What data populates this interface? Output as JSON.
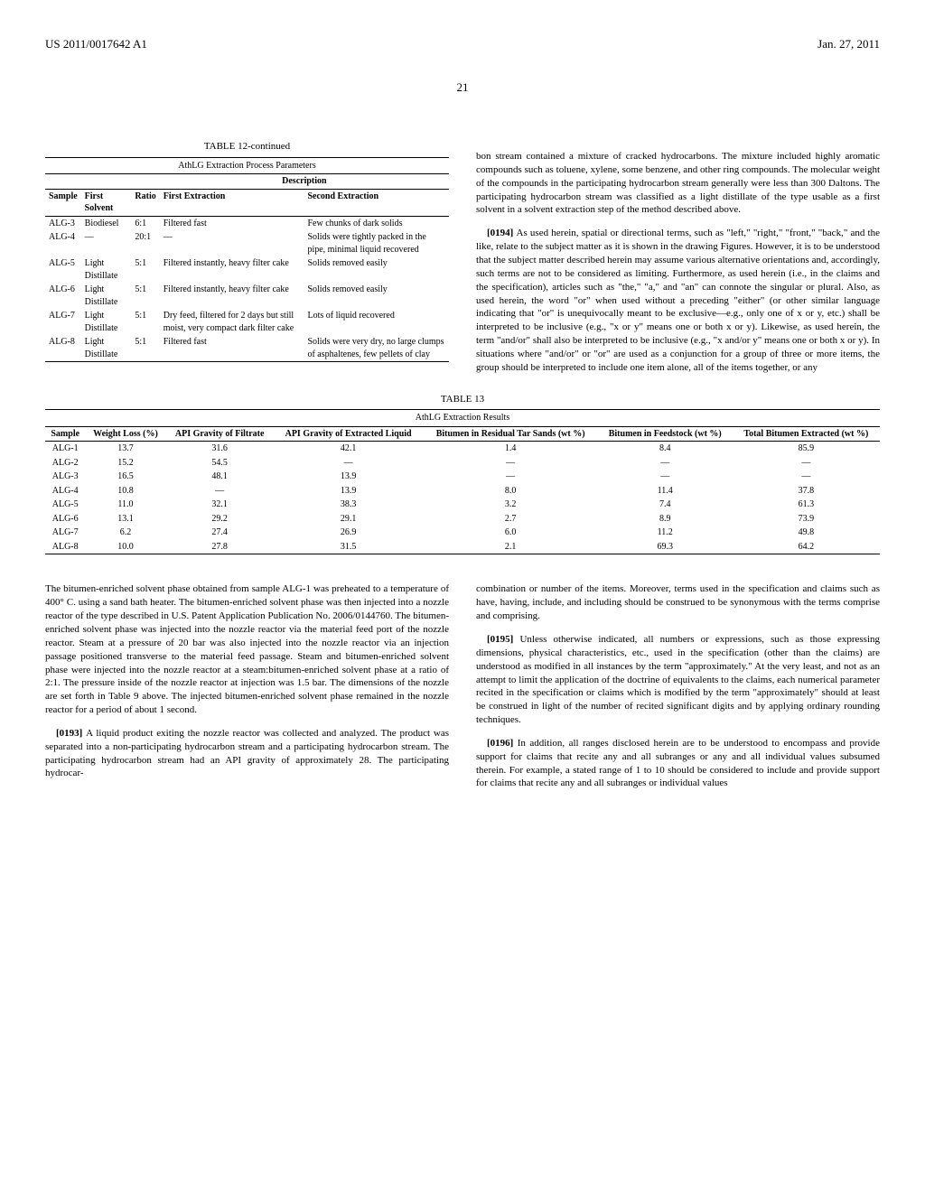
{
  "header": {
    "pubnum": "US 2011/0017642 A1",
    "pubdate": "Jan. 27, 2011",
    "pagenum": "21"
  },
  "table12": {
    "caption": "TABLE 12-continued",
    "subcaption": "AthLG Extraction Process Parameters",
    "desc_header": "Description",
    "columns": [
      "Sample",
      "First Solvent",
      "Ratio",
      "First Extraction",
      "Second Extraction"
    ],
    "rows": [
      {
        "sample": "ALG-3",
        "solvent": "Biodiesel",
        "ratio": "6:1",
        "first": "Filtered fast",
        "second": "Few chunks of dark solids"
      },
      {
        "sample": "ALG-4",
        "solvent": "—",
        "ratio": "20:1",
        "first": "—",
        "second": "Solids were tightly packed in the pipe, minimal liquid recovered"
      },
      {
        "sample": "ALG-5",
        "solvent": "Light Distillate",
        "ratio": "5:1",
        "first": "Filtered instantly, heavy filter cake",
        "second": "Solids removed easily"
      },
      {
        "sample": "ALG-6",
        "solvent": "Light Distillate",
        "ratio": "5:1",
        "first": "Filtered instantly, heavy filter cake",
        "second": "Solids removed easily"
      },
      {
        "sample": "ALG-7",
        "solvent": "Light Distillate",
        "ratio": "5:1",
        "first": "Dry feed, filtered for 2 days but still moist, very compact dark filter cake",
        "second": "Lots of liquid recovered"
      },
      {
        "sample": "ALG-8",
        "solvent": "Light Distillate",
        "ratio": "5:1",
        "first": "Filtered fast",
        "second": "Solids were very dry, no large clumps of asphaltenes, few pellets of clay"
      }
    ]
  },
  "table13": {
    "caption": "TABLE 13",
    "subcaption": "AthLG Extraction Results",
    "columns": [
      "Sample",
      "Weight Loss (%)",
      "API Gravity of Filtrate",
      "API Gravity of Extracted Liquid",
      "Bitumen in Residual Tar Sands (wt %)",
      "Bitumen in Feedstock (wt %)",
      "Total Bitumen Extracted (wt %)"
    ],
    "rows": [
      [
        "ALG-1",
        "13.7",
        "31.6",
        "42.1",
        "1.4",
        "8.4",
        "85.9"
      ],
      [
        "ALG-2",
        "15.2",
        "54.5",
        "—",
        "—",
        "—",
        "—"
      ],
      [
        "ALG-3",
        "16.5",
        "48.1",
        "13.9",
        "—",
        "—",
        "—"
      ],
      [
        "ALG-4",
        "10.8",
        "—",
        "13.9",
        "8.0",
        "11.4",
        "37.8"
      ],
      [
        "ALG-5",
        "11.0",
        "32.1",
        "38.3",
        "3.2",
        "7.4",
        "61.3"
      ],
      [
        "ALG-6",
        "13.1",
        "29.2",
        "29.1",
        "2.7",
        "8.9",
        "73.9"
      ],
      [
        "ALG-7",
        "6.2",
        "27.4",
        "26.9",
        "6.0",
        "11.2",
        "49.8"
      ],
      [
        "ALG-8",
        "10.0",
        "27.8",
        "31.5",
        "2.1",
        "69.3",
        "64.2"
      ]
    ]
  },
  "col1_para1": "bon stream contained a mixture of cracked hydrocarbons. The mixture included highly aromatic compounds such as toluene, xylene, some benzene, and other ring compounds. The molecular weight of the compounds in the participating hydrocarbon stream generally were less than 300 Daltons. The participating hydrocarbon stream was classified as a light distillate of the type usable as a first solvent in a solvent extraction step of the method described above.",
  "para0194_num": "[0194]",
  "para0194": "As used herein, spatial or directional terms, such as \"left,\" \"right,\" \"front,\" \"back,\" and the like, relate to the subject matter as it is shown in the drawing Figures. However, it is to be understood that the subject matter described herein may assume various alternative orientations and, accordingly, such terms are not to be considered as limiting. Furthermore, as used herein (i.e., in the claims and the specification), articles such as \"the,\" \"a,\" and \"an\" can connote the singular or plural. Also, as used herein, the word \"or\" when used without a preceding \"either\" (or other similar language indicating that \"or\" is unequivocally meant to be exclusive—e.g., only one of x or y, etc.) shall be interpreted to be inclusive (e.g., \"x or y\" means one or both x or y). Likewise, as used herein, the term \"and/or\" shall also be interpreted to be inclusive (e.g., \"x and/or y\" means one or both x or y). In situations where \"and/or\" or \"or\" are used as a conjunction for a group of three or more items, the group should be interpreted to include one item alone, all of the items together, or any",
  "bottom_left_para": "The bitumen-enriched solvent phase obtained from sample ALG-1 was preheated to a temperature of 400° C. using a sand bath heater. The bitumen-enriched solvent phase was then injected into a nozzle reactor of the type described in U.S. Patent Application Publication No. 2006/0144760. The bitumen-enriched solvent phase was injected into the nozzle reactor via the material feed port of the nozzle reactor. Steam at a pressure of 20 bar was also injected into the nozzle reactor via an injection passage positioned transverse to the material feed passage. Steam and bitumen-enriched solvent phase were injected into the nozzle reactor at a steam:bitumen-enriched solvent phase at a ratio of 2:1. The pressure inside of the nozzle reactor at injection was 1.5 bar. The dimensions of the nozzle are set forth in Table 9 above. The injected bitumen-enriched solvent phase remained in the nozzle reactor for a period of about 1 second.",
  "para0193_num": "[0193]",
  "para0193": "A liquid product exiting the nozzle reactor was collected and analyzed. The product was separated into a non-participating hydrocarbon stream and a participating hydrocarbon stream. The participating hydrocarbon stream had an API gravity of approximately 28. The participating hydrocar-",
  "bottom_right_para1": "combination or number of the items. Moreover, terms used in the specification and claims such as have, having, include, and including should be construed to be synonymous with the terms comprise and comprising.",
  "para0195_num": "[0195]",
  "para0195": "Unless otherwise indicated, all numbers or expressions, such as those expressing dimensions, physical characteristics, etc., used in the specification (other than the claims) are understood as modified in all instances by the term \"approximately.\" At the very least, and not as an attempt to limit the application of the doctrine of equivalents to the claims, each numerical parameter recited in the specification or claims which is modified by the term \"approximately\" should at least be construed in light of the number of recited significant digits and by applying ordinary rounding techniques.",
  "para0196_num": "[0196]",
  "para0196": "In addition, all ranges disclosed herein are to be understood to encompass and provide support for claims that recite any and all subranges or any and all individual values subsumed therein. For example, a stated range of 1 to 10 should be considered to include and provide support for claims that recite any and all subranges or individual values"
}
